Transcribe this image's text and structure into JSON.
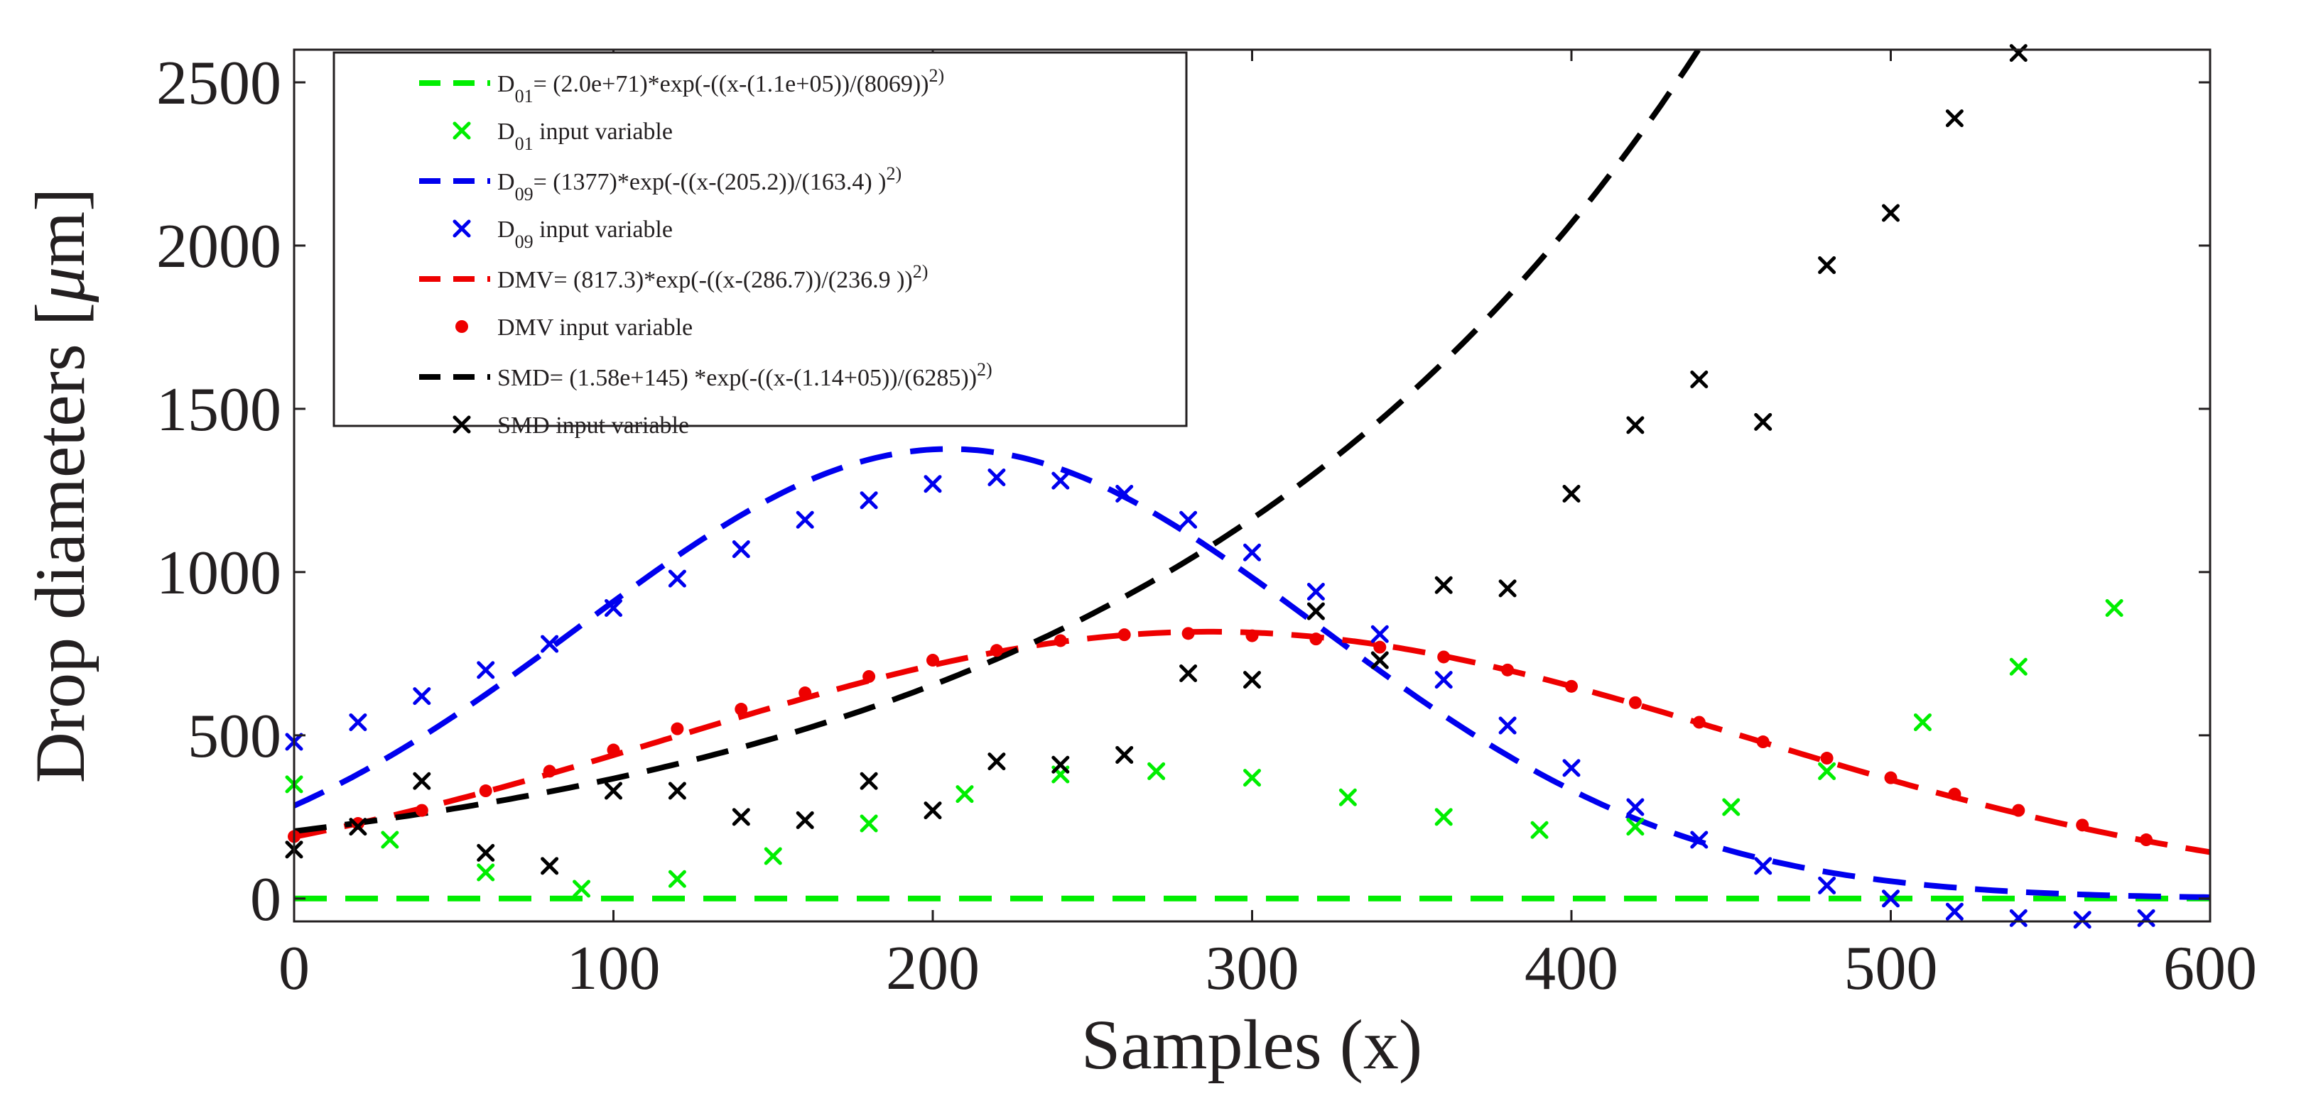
{
  "chart_data": {
    "type": "scatter",
    "xlabel": "Samples (x)",
    "ylabel_prefix": "Drop diameters [",
    "ylabel_mu": "μ",
    "ylabel_suffix": "m]",
    "xlim": [
      0,
      600
    ],
    "ylim": [
      -70,
      2600
    ],
    "xticks": [
      0,
      100,
      200,
      300,
      400,
      500,
      600
    ],
    "yticks": [
      0,
      500,
      1000,
      1500,
      2000,
      2500
    ],
    "grid": false,
    "legend_position": "top-left",
    "series": [
      {
        "name": "D01",
        "color": "#00ee00",
        "marker": "x",
        "fit_label": "D01= (2.0e+71)*exp(-((x-(1.1e+05))/(8069))^2)",
        "points_label": "D01 input variable",
        "fit": {
          "a": 2e+71,
          "b": 110000,
          "c": 8069
        },
        "x": [
          0,
          30,
          60,
          90,
          120,
          150,
          180,
          210,
          240,
          270,
          300,
          330,
          360,
          390,
          420,
          450,
          480,
          510,
          540,
          570
        ],
        "y": [
          350,
          180,
          80,
          30,
          60,
          130,
          230,
          320,
          380,
          390,
          370,
          310,
          250,
          210,
          220,
          280,
          390,
          540,
          710,
          890
        ]
      },
      {
        "name": "D09",
        "color": "#0000ee",
        "marker": "x",
        "fit_label": "D09= (1377)*exp(-((x-(205.2))/(163.4) )^2)",
        "points_label": "D09 input variable",
        "fit": {
          "a": 1377,
          "b": 205.2,
          "c": 163.4
        },
        "x": [
          0,
          20,
          40,
          60,
          80,
          100,
          120,
          140,
          160,
          180,
          200,
          220,
          240,
          260,
          280,
          300,
          320,
          340,
          360,
          380,
          400,
          420,
          440,
          460,
          480,
          500,
          520,
          540,
          560,
          580
        ],
        "y": [
          480,
          540,
          620,
          700,
          780,
          890,
          980,
          1070,
          1160,
          1220,
          1270,
          1290,
          1280,
          1240,
          1160,
          1060,
          940,
          810,
          670,
          530,
          400,
          280,
          180,
          100,
          40,
          0,
          -40,
          -60,
          -65,
          -60
        ]
      },
      {
        "name": "DMV",
        "color": "#ee0000",
        "marker": "dot",
        "fit_label": "DMV= (817.3)*exp(-((x-(286.7))/(236.9 ))^2)",
        "points_label": "DMV input variable",
        "fit": {
          "a": 817.3,
          "b": 286.7,
          "c": 236.9
        },
        "x": [
          0,
          20,
          40,
          60,
          80,
          100,
          120,
          140,
          160,
          180,
          200,
          220,
          240,
          260,
          280,
          300,
          320,
          340,
          360,
          380,
          400,
          420,
          440,
          460,
          480,
          500,
          520,
          540,
          560,
          580
        ],
        "y": [
          190,
          230,
          270,
          330,
          390,
          455,
          520,
          580,
          630,
          680,
          730,
          760,
          790,
          808,
          812,
          805,
          795,
          770,
          740,
          700,
          650,
          600,
          540,
          480,
          430,
          370,
          320,
          270,
          225,
          180
        ]
      },
      {
        "name": "SMD",
        "color": "#000000",
        "marker": "x",
        "fit_label": "SMD= (1.58e+145) *exp(-((x-(1.14+05))/(6285))^2)",
        "points_label": "SMD input variable",
        "fit": {
          "a": 1.58e+145,
          "b": 114000,
          "c": 6285
        },
        "x": [
          0,
          20,
          40,
          60,
          80,
          100,
          120,
          140,
          160,
          180,
          200,
          220,
          240,
          260,
          280,
          300,
          320,
          340,
          360,
          380,
          400,
          420,
          440,
          460,
          480,
          500,
          520,
          540
        ],
        "y": [
          150,
          220,
          360,
          140,
          100,
          330,
          330,
          250,
          240,
          360,
          270,
          420,
          410,
          440,
          690,
          670,
          880,
          730,
          960,
          950,
          1240,
          1450,
          1590,
          1460,
          1940,
          2100,
          2390,
          2590
        ]
      }
    ]
  }
}
